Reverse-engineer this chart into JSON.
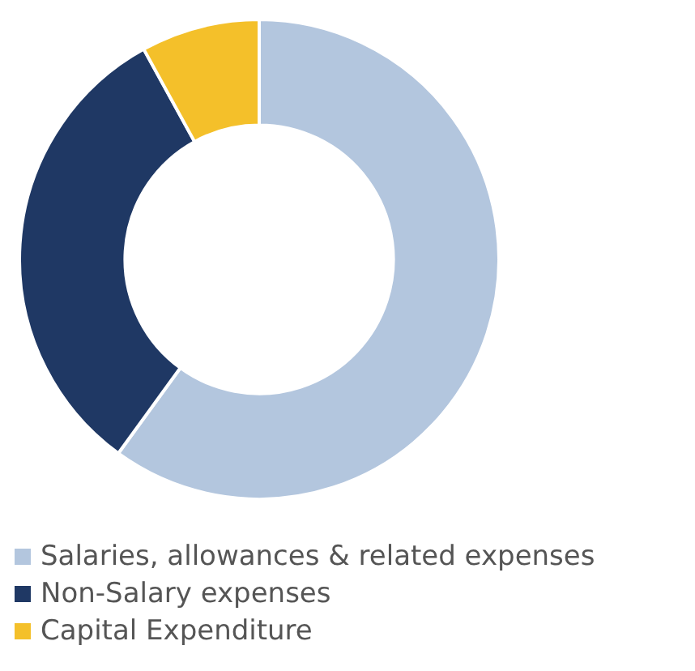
{
  "chart_data": {
    "type": "donut",
    "categories": [
      "Salaries, allowances & related expenses",
      "Non-Salary expenses",
      "Capital Expenditure"
    ],
    "values": [
      60,
      32,
      8
    ],
    "colors": [
      "#b3c6de",
      "#1f3864",
      "#f4c02a"
    ],
    "legend": "bottom"
  }
}
